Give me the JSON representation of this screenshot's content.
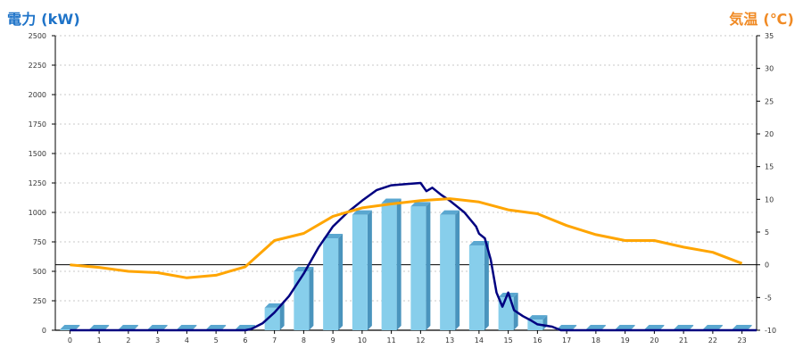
{
  "chart_data": {
    "type": "bar+line",
    "title": "",
    "left_axis": {
      "label": "電力 (kW)",
      "ylim": [
        0,
        2500
      ],
      "ticks": [
        0,
        250,
        500,
        750,
        1000,
        1250,
        1500,
        1750,
        2000,
        2250,
        2500
      ]
    },
    "right_axis": {
      "label": "気温 (℃)",
      "ylim": [
        -10,
        35
      ],
      "ticks": [
        -10,
        -5,
        0,
        5,
        10,
        15,
        20,
        25,
        30,
        35
      ]
    },
    "x": [
      0,
      1,
      2,
      3,
      4,
      5,
      6,
      7,
      8,
      9,
      10,
      11,
      12,
      13,
      14,
      15,
      16,
      17,
      18,
      19,
      20,
      21,
      22,
      23
    ],
    "bars": {
      "color": "#87ceeb",
      "values": [
        0,
        0,
        0,
        0,
        0,
        0,
        0,
        190,
        500,
        780,
        980,
        1080,
        1050,
        980,
        720,
        280,
        90,
        0,
        0,
        0,
        0,
        0,
        0,
        0
      ]
    },
    "power_line": {
      "color": "#000080",
      "points": [
        [
          0,
          0
        ],
        [
          6,
          0
        ],
        [
          6.2,
          10
        ],
        [
          6.6,
          60
        ],
        [
          7,
          150
        ],
        [
          7.5,
          290
        ],
        [
          8,
          480
        ],
        [
          8.5,
          700
        ],
        [
          9,
          880
        ],
        [
          9.5,
          1000
        ],
        [
          10,
          1100
        ],
        [
          10.5,
          1190
        ],
        [
          11,
          1230
        ],
        [
          11.5,
          1240
        ],
        [
          12,
          1250
        ],
        [
          12.2,
          1180
        ],
        [
          12.4,
          1210
        ],
        [
          12.7,
          1150
        ],
        [
          13,
          1100
        ],
        [
          13.5,
          1000
        ],
        [
          13.9,
          880
        ],
        [
          14,
          820
        ],
        [
          14.2,
          780
        ],
        [
          14.4,
          600
        ],
        [
          14.6,
          320
        ],
        [
          14.8,
          200
        ],
        [
          15,
          320
        ],
        [
          15.2,
          170
        ],
        [
          15.5,
          120
        ],
        [
          15.8,
          80
        ],
        [
          16,
          50
        ],
        [
          16.5,
          30
        ],
        [
          16.8,
          0
        ],
        [
          23.5,
          0
        ]
      ]
    },
    "temp_line": {
      "color": "#ffa500",
      "points": [
        [
          0,
          0
        ],
        [
          1,
          -0.4
        ],
        [
          2,
          -1.0
        ],
        [
          3,
          -1.2
        ],
        [
          4,
          -2.0
        ],
        [
          5,
          -1.6
        ],
        [
          6,
          -0.3
        ],
        [
          7,
          3.7
        ],
        [
          8,
          4.8
        ],
        [
          9,
          7.4
        ],
        [
          10,
          8.7
        ],
        [
          11,
          9.3
        ],
        [
          12,
          9.8
        ],
        [
          13,
          10.1
        ],
        [
          14,
          9.6
        ],
        [
          15,
          8.4
        ],
        [
          16,
          7.8
        ],
        [
          17,
          6.0
        ],
        [
          18,
          4.6
        ],
        [
          19,
          3.7
        ],
        [
          20,
          3.7
        ],
        [
          21,
          2.7
        ],
        [
          22,
          1.9
        ],
        [
          23,
          0.2
        ]
      ]
    }
  }
}
